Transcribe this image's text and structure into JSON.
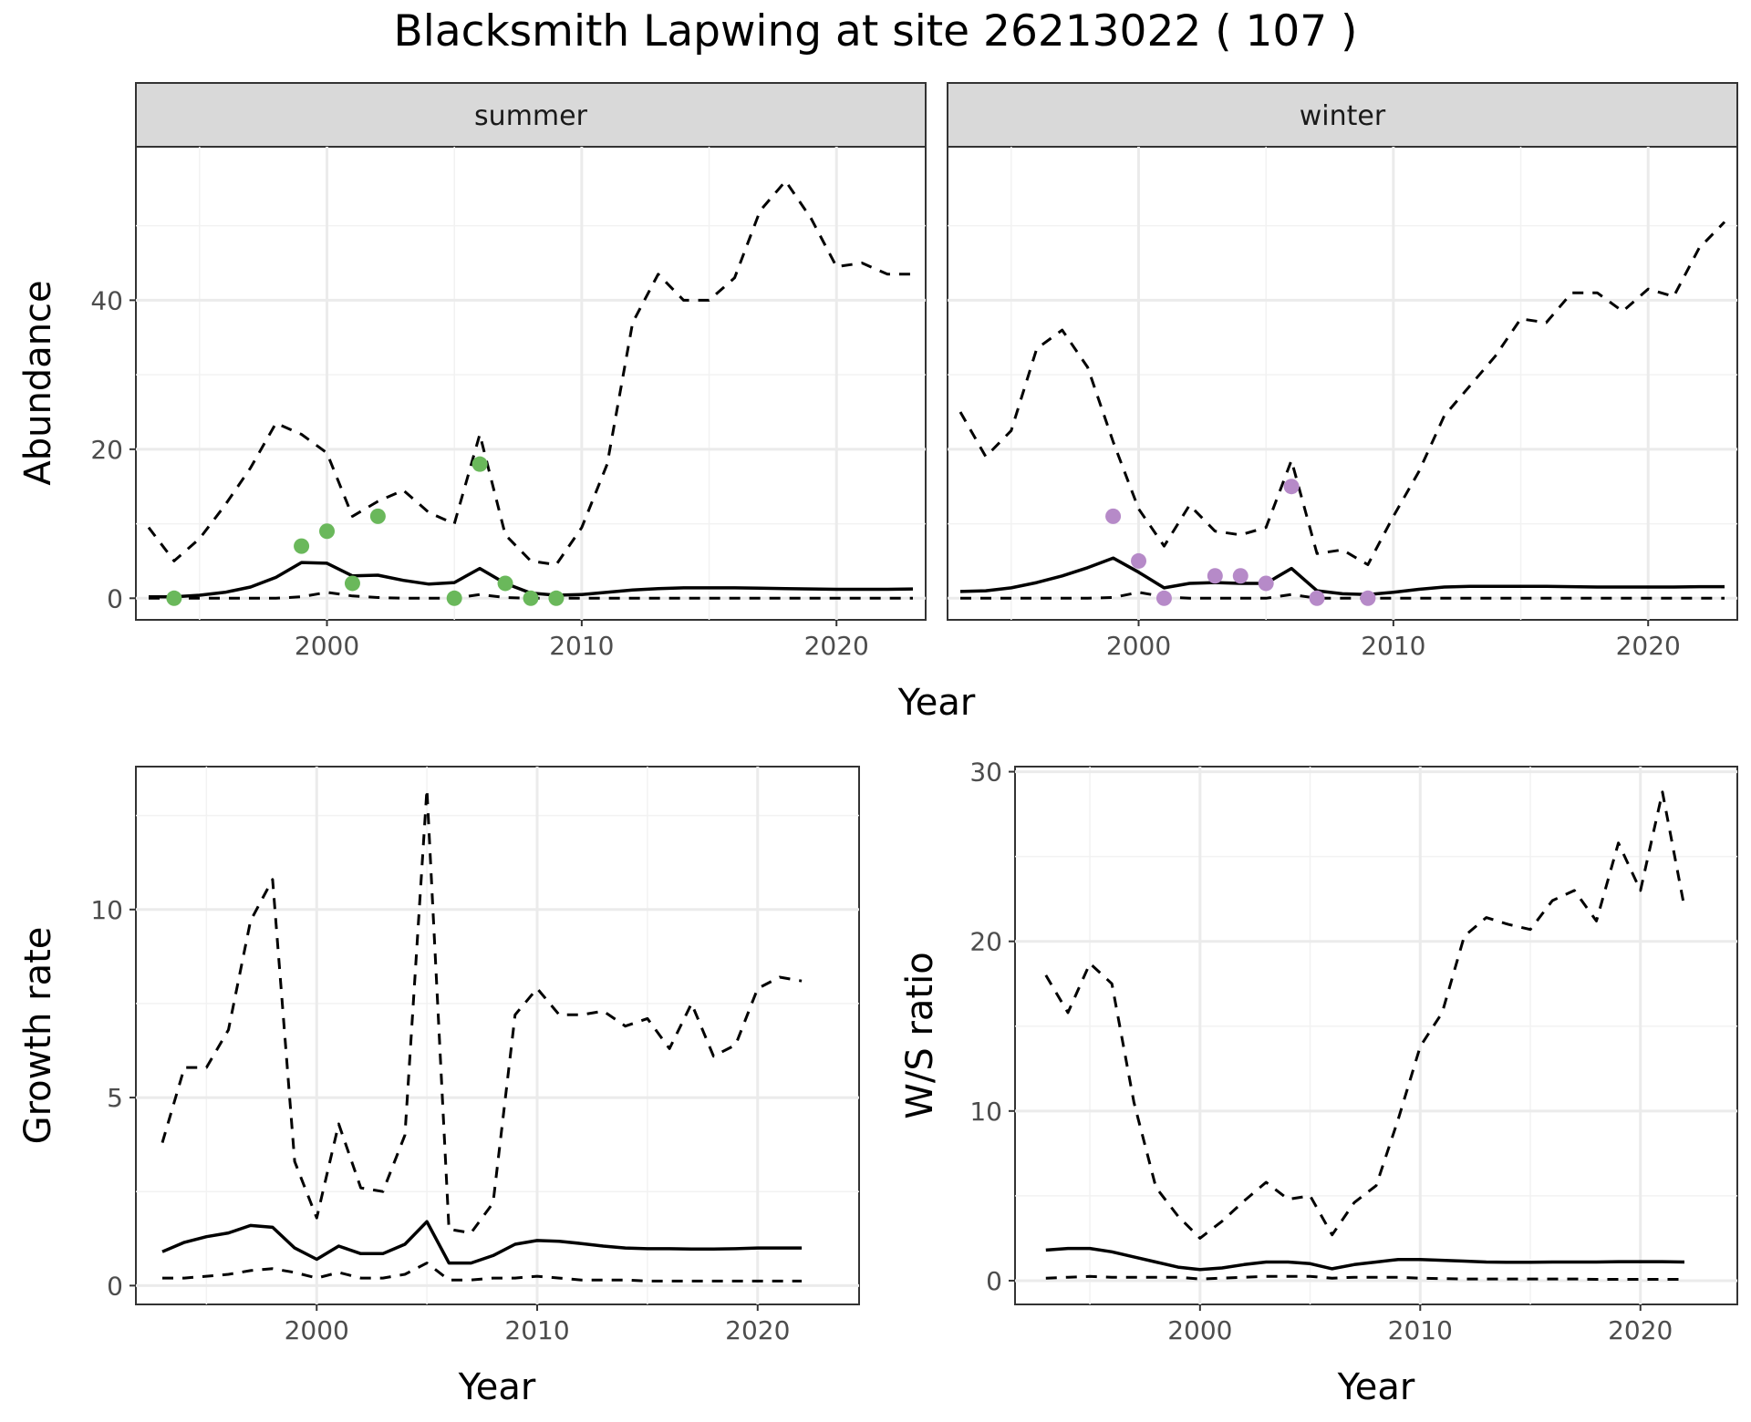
{
  "title": "Blacksmith Lapwing at site 26213022 ( 107 )",
  "chart_data": [
    {
      "type": "line",
      "panel": "abundance",
      "facets": [
        "summer",
        "winter"
      ],
      "xlabel": "Year",
      "ylabel": "Abundance",
      "xlim": [
        1992.5,
        2023.5
      ],
      "ylim": [
        -2.9,
        60.6
      ],
      "x_ticks": [
        2000,
        2010,
        2020
      ],
      "y_ticks": [
        0,
        20,
        40
      ],
      "grid": true,
      "series": [
        {
          "facet": "summer",
          "role": "estimate",
          "style": "solid",
          "x": [
            1993,
            1994,
            1995,
            1996,
            1997,
            1998,
            1999,
            2000,
            2001,
            2002,
            2003,
            2004,
            2005,
            2006,
            2007,
            2008,
            2009,
            2010,
            2011,
            2012,
            2013,
            2014,
            2015,
            2016,
            2017,
            2018,
            2019,
            2020,
            2021,
            2022,
            2023
          ],
          "y": [
            0.2,
            0.2,
            0.4,
            0.8,
            1.5,
            2.8,
            4.8,
            4.7,
            3.0,
            3.1,
            2.4,
            1.9,
            2.1,
            4.0,
            2.0,
            0.7,
            0.4,
            0.5,
            0.8,
            1.1,
            1.3,
            1.4,
            1.4,
            1.4,
            1.35,
            1.3,
            1.25,
            1.2,
            1.2,
            1.2,
            1.25
          ]
        },
        {
          "facet": "summer",
          "role": "upper",
          "style": "dashed",
          "x": [
            1993,
            1994,
            1995,
            1996,
            1997,
            1998,
            1999,
            2000,
            2001,
            2002,
            2003,
            2004,
            2005,
            2006,
            2007,
            2008,
            2009,
            2010,
            2011,
            2012,
            2013,
            2014,
            2015,
            2016,
            2017,
            2018,
            2019,
            2020,
            2021,
            2022,
            2023
          ],
          "y": [
            9.5,
            5.0,
            8.0,
            12.5,
            17.5,
            23.5,
            22.0,
            19.5,
            11.0,
            13.0,
            14.5,
            11.5,
            10.0,
            22.0,
            8.5,
            5.0,
            4.5,
            9.5,
            18.0,
            37.0,
            43.5,
            40.0,
            40.0,
            43.0,
            52.0,
            56.0,
            51.0,
            44.5,
            45.0,
            43.5,
            43.5
          ]
        },
        {
          "facet": "summer",
          "role": "lower",
          "style": "dashed",
          "x": [
            1993,
            1994,
            1995,
            1996,
            1997,
            1998,
            1999,
            2000,
            2001,
            2002,
            2003,
            2004,
            2005,
            2006,
            2007,
            2008,
            2009,
            2010,
            2011,
            2012,
            2013,
            2014,
            2015,
            2016,
            2017,
            2018,
            2019,
            2020,
            2021,
            2022,
            2023
          ],
          "y": [
            0,
            0,
            0,
            0,
            0,
            0,
            0.2,
            0.8,
            0.3,
            0.1,
            0,
            0,
            0,
            0.5,
            0.1,
            0,
            0,
            0,
            0,
            0,
            0,
            0,
            0,
            0,
            0,
            0,
            0,
            0,
            0,
            0,
            0
          ]
        },
        {
          "facet": "winter",
          "role": "estimate",
          "style": "solid",
          "x": [
            1993,
            1994,
            1995,
            1996,
            1997,
            1998,
            1999,
            2000,
            2001,
            2002,
            2003,
            2004,
            2005,
            2006,
            2007,
            2008,
            2009,
            2010,
            2011,
            2012,
            2013,
            2014,
            2015,
            2016,
            2017,
            2018,
            2019,
            2020,
            2021,
            2022,
            2023
          ],
          "y": [
            0.9,
            1.0,
            1.4,
            2.1,
            3.0,
            4.1,
            5.4,
            3.5,
            1.4,
            2.0,
            2.1,
            2.0,
            2.0,
            4.0,
            1.0,
            0.6,
            0.5,
            0.8,
            1.2,
            1.5,
            1.6,
            1.6,
            1.6,
            1.6,
            1.55,
            1.5,
            1.5,
            1.5,
            1.5,
            1.55,
            1.55
          ]
        },
        {
          "facet": "winter",
          "role": "upper",
          "style": "dashed",
          "x": [
            1993,
            1994,
            1995,
            1996,
            1997,
            1998,
            1999,
            2000,
            2001,
            2002,
            2003,
            2004,
            2005,
            2006,
            2007,
            2008,
            2009,
            2010,
            2011,
            2012,
            2013,
            2014,
            2015,
            2016,
            2017,
            2018,
            2019,
            2020,
            2021,
            2022,
            2023
          ],
          "y": [
            25.0,
            19.0,
            22.5,
            33.5,
            36.0,
            31.0,
            21.0,
            12.0,
            7.0,
            12.5,
            9.0,
            8.5,
            9.5,
            18.5,
            6.0,
            6.5,
            4.5,
            11.0,
            17.0,
            24.5,
            28.5,
            32.5,
            37.5,
            37.0,
            41.0,
            41.0,
            38.5,
            41.5,
            40.5,
            47.0,
            50.5
          ]
        },
        {
          "facet": "winter",
          "role": "lower",
          "style": "dashed",
          "x": [
            1993,
            1994,
            1995,
            1996,
            1997,
            1998,
            1999,
            2000,
            2001,
            2002,
            2003,
            2004,
            2005,
            2006,
            2007,
            2008,
            2009,
            2010,
            2011,
            2012,
            2013,
            2014,
            2015,
            2016,
            2017,
            2018,
            2019,
            2020,
            2021,
            2022,
            2023
          ],
          "y": [
            0,
            0,
            0,
            0,
            0,
            0,
            0.1,
            0.8,
            0.2,
            0,
            0,
            0,
            0,
            0.5,
            0,
            0,
            0,
            0,
            0,
            0,
            0,
            0,
            0,
            0,
            0,
            0,
            0,
            0,
            0,
            0,
            0
          ]
        }
      ],
      "points": [
        {
          "facet": "summer",
          "color": "#6ab85b",
          "x": [
            1994,
            1999,
            2000,
            2001,
            2002,
            2005,
            2006,
            2007,
            2008,
            2009
          ],
          "y": [
            0,
            7,
            9,
            2,
            11,
            0,
            18,
            2,
            0,
            0
          ]
        },
        {
          "facet": "winter",
          "color": "#b68ac8",
          "x": [
            1999,
            2000,
            2001,
            2003,
            2004,
            2005,
            2006,
            2007,
            2009
          ],
          "y": [
            11,
            5,
            0,
            3,
            3,
            2,
            15,
            0,
            0
          ]
        }
      ]
    },
    {
      "type": "line",
      "panel": "growth",
      "xlabel": "Year",
      "ylabel": "Growth rate",
      "xlim": [
        1991.8,
        2024.6
      ],
      "ylim": [
        -0.5,
        13.8
      ],
      "x_ticks": [
        2000,
        2010,
        2020
      ],
      "y_ticks": [
        0,
        5,
        10
      ],
      "grid": true,
      "series": [
        {
          "role": "estimate",
          "style": "solid",
          "x": [
            1993,
            1994,
            1995,
            1996,
            1997,
            1998,
            1999,
            2000,
            2001,
            2002,
            2003,
            2004,
            2005,
            2006,
            2007,
            2008,
            2009,
            2010,
            2011,
            2012,
            2013,
            2014,
            2015,
            2016,
            2017,
            2018,
            2019,
            2020,
            2021,
            2022
          ],
          "y": [
            0.9,
            1.15,
            1.3,
            1.4,
            1.6,
            1.55,
            1.0,
            0.7,
            1.05,
            0.85,
            0.85,
            1.1,
            1.7,
            0.6,
            0.6,
            0.8,
            1.1,
            1.2,
            1.18,
            1.12,
            1.05,
            1.0,
            0.98,
            0.98,
            0.97,
            0.97,
            0.98,
            1.0,
            1.0,
            1.0
          ]
        },
        {
          "role": "upper",
          "style": "dashed",
          "x": [
            1993,
            1994,
            1995,
            1996,
            1997,
            1998,
            1999,
            2000,
            2001,
            2002,
            2003,
            2004,
            2005,
            2006,
            2007,
            2008,
            2009,
            2010,
            2011,
            2012,
            2013,
            2014,
            2015,
            2016,
            2017,
            2018,
            2019,
            2020,
            2021,
            2022
          ],
          "y": [
            3.8,
            5.8,
            5.8,
            6.8,
            9.7,
            10.8,
            3.3,
            1.8,
            4.3,
            2.6,
            2.5,
            4.0,
            13.2,
            1.5,
            1.4,
            2.2,
            7.2,
            7.9,
            7.2,
            7.2,
            7.3,
            6.9,
            7.1,
            6.3,
            7.5,
            6.1,
            6.4,
            7.9,
            8.2,
            8.1
          ]
        },
        {
          "role": "lower",
          "style": "dashed",
          "x": [
            1993,
            1994,
            1995,
            1996,
            1997,
            1998,
            1999,
            2000,
            2001,
            2002,
            2003,
            2004,
            2005,
            2006,
            2007,
            2008,
            2009,
            2010,
            2011,
            2012,
            2013,
            2014,
            2015,
            2016,
            2017,
            2018,
            2019,
            2020,
            2021,
            2022
          ],
          "y": [
            0.2,
            0.2,
            0.25,
            0.3,
            0.4,
            0.45,
            0.35,
            0.2,
            0.35,
            0.2,
            0.2,
            0.3,
            0.6,
            0.15,
            0.15,
            0.2,
            0.2,
            0.25,
            0.2,
            0.15,
            0.15,
            0.15,
            0.12,
            0.12,
            0.12,
            0.12,
            0.12,
            0.12,
            0.12,
            0.12
          ]
        }
      ]
    },
    {
      "type": "line",
      "panel": "ratio",
      "xlabel": "Year",
      "ylabel": "W/S ratio",
      "xlim": [
        1991.6,
        2024.4
      ],
      "ylim": [
        -1.4,
        30.3
      ],
      "x_ticks": [
        2000,
        2010,
        2020
      ],
      "y_ticks": [
        0,
        10,
        20,
        30
      ],
      "grid": true,
      "series": [
        {
          "role": "estimate",
          "style": "solid",
          "x": [
            1993,
            1994,
            1995,
            1996,
            1997,
            1998,
            1999,
            2000,
            2001,
            2002,
            2003,
            2004,
            2005,
            2006,
            2007,
            2008,
            2009,
            2010,
            2011,
            2012,
            2013,
            2014,
            2015,
            2016,
            2017,
            2018,
            2019,
            2020,
            2021,
            2022
          ],
          "y": [
            1.8,
            1.9,
            1.9,
            1.7,
            1.4,
            1.1,
            0.8,
            0.65,
            0.75,
            0.95,
            1.1,
            1.1,
            1.0,
            0.7,
            0.95,
            1.1,
            1.25,
            1.25,
            1.2,
            1.15,
            1.1,
            1.08,
            1.08,
            1.1,
            1.1,
            1.1,
            1.12,
            1.12,
            1.12,
            1.1
          ]
        },
        {
          "role": "upper",
          "style": "dashed",
          "x": [
            1993,
            1994,
            1995,
            1996,
            1997,
            1998,
            1999,
            2000,
            2001,
            2002,
            2003,
            2004,
            2005,
            2006,
            2007,
            2008,
            2009,
            2010,
            2011,
            2012,
            2013,
            2014,
            2015,
            2016,
            2017,
            2018,
            2019,
            2020,
            2021,
            2022
          ],
          "y": [
            18.0,
            15.8,
            18.7,
            17.5,
            10.5,
            5.5,
            3.8,
            2.5,
            3.5,
            4.7,
            5.8,
            4.8,
            5.0,
            2.7,
            4.6,
            5.6,
            9.5,
            13.8,
            15.8,
            20.3,
            21.4,
            21.0,
            20.7,
            22.4,
            23.0,
            21.2,
            25.8,
            23.0,
            28.8,
            22.0
          ]
        },
        {
          "role": "lower",
          "style": "dashed",
          "x": [
            1993,
            1994,
            1995,
            1996,
            1997,
            1998,
            1999,
            2000,
            2001,
            2002,
            2003,
            2004,
            2005,
            2006,
            2007,
            2008,
            2009,
            2010,
            2011,
            2012,
            2013,
            2014,
            2015,
            2016,
            2017,
            2018,
            2019,
            2020,
            2021,
            2022
          ],
          "y": [
            0.15,
            0.2,
            0.25,
            0.2,
            0.2,
            0.2,
            0.2,
            0.1,
            0.15,
            0.2,
            0.25,
            0.25,
            0.25,
            0.15,
            0.2,
            0.2,
            0.2,
            0.15,
            0.12,
            0.1,
            0.1,
            0.1,
            0.1,
            0.1,
            0.1,
            0.08,
            0.08,
            0.08,
            0.08,
            0.08
          ]
        }
      ]
    }
  ]
}
